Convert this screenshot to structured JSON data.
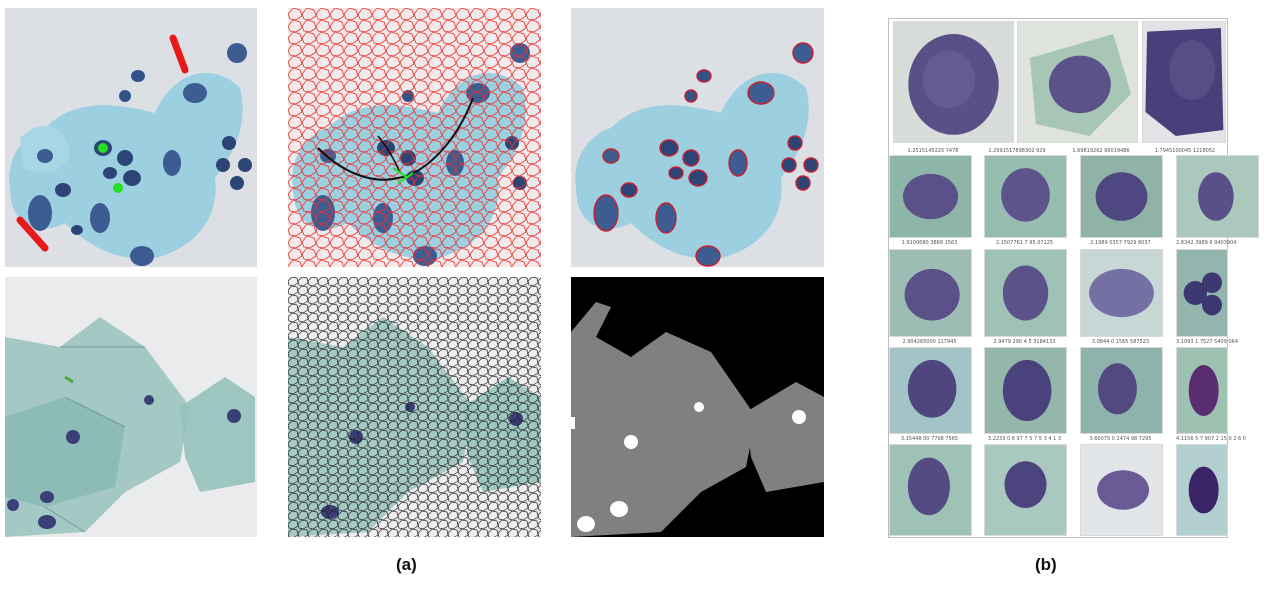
{
  "captions": {
    "a": "(a)",
    "b": "(b)"
  },
  "panels_a": [
    {
      "name": "scribble-annotation-image"
    },
    {
      "name": "superpixel-graph-image"
    },
    {
      "name": "nuclei-contour-image"
    },
    {
      "name": "squamous-cells-image"
    },
    {
      "name": "superpixel-overlay-image"
    },
    {
      "name": "segmentation-mask-image"
    }
  ],
  "grid_b": {
    "rows": [
      [
        {
          "score": "1.2515145225 7478"
        },
        {
          "score": "1.2991517898302 929"
        },
        {
          "score": "1.69819262 96019486"
        },
        {
          "score": "1.7945100045 1218052"
        }
      ],
      [
        {
          "score": "1.9100680 3868 1563"
        },
        {
          "score": "2.1507761 7 95 07125"
        },
        {
          "score": "2.1989 0357 7929 8037"
        },
        {
          "score": "2.8342 3989 6 9403904"
        }
      ],
      [
        {
          "score": "2.904265000 117945"
        },
        {
          "score": "2.9479 290 4 5 3184133"
        },
        {
          "score": "3.0844 0 1565 587523"
        },
        {
          "score": "3.1093 1 7527 5409 064"
        }
      ],
      [
        {
          "score": "3.15448 00 7798 7565"
        },
        {
          "score": "3.2233 0 6 97 7 5 7 5 3 4 1 3"
        },
        {
          "score": "3.60075 0 2474 98 7295"
        },
        {
          "score": "4.1156 5 7 907 2 15 0 2 6 0"
        }
      ],
      [
        {
          "score": ""
        },
        {
          "score": ""
        },
        {
          "score": ""
        },
        {
          "score": ""
        }
      ]
    ]
  }
}
